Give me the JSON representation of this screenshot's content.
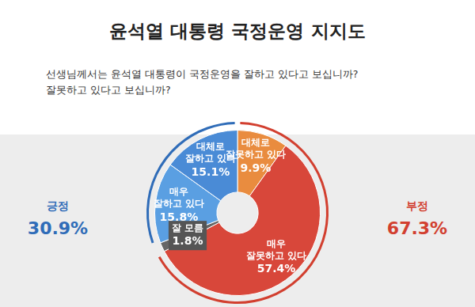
{
  "chart_data": {
    "type": "doughnut",
    "title": "윤석열 대통령 국정운영 지지도",
    "subtitle": [
      "선생님께서는 윤석열 대통령이 국정운영을 잘하고 있다고 보십니까?",
      "잘못하고 있다고 보십니까?"
    ],
    "categories": [
      "대체로 잘못하고 있다",
      "매우 잘못하고 있다",
      "잘 모름",
      "매우 잘하고 있다",
      "대체로 잘하고 있다"
    ],
    "values": [
      9.9,
      57.4,
      1.8,
      15.8,
      15.1
    ],
    "value_labels": [
      "9.9%",
      "57.4%",
      "1.8%",
      "15.8%",
      "15.1%"
    ],
    "colors": [
      "#e98c3f",
      "#d8473a",
      "#666666",
      "#5a9fe2",
      "#4a8bd6"
    ],
    "data_labels": true,
    "legend": false,
    "groups": [
      {
        "name": "긍정",
        "value": 30.9,
        "value_label": "30.9%",
        "color": "#2f6cb8",
        "members": [
          "매우 잘하고 있다",
          "대체로 잘하고 있다"
        ]
      },
      {
        "name": "부정",
        "value": 67.3,
        "value_label": "67.3%",
        "color": "#d23f2f",
        "members": [
          "대체로 잘못하고 있다",
          "매우 잘못하고 있다"
        ]
      }
    ]
  }
}
